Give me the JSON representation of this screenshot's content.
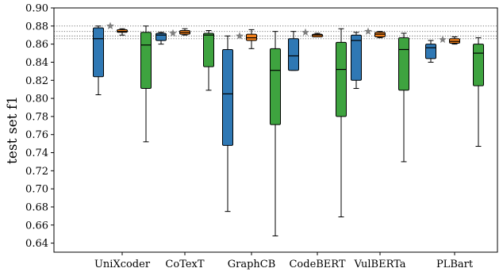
{
  "chart_data": {
    "type": "box",
    "ylabel": "test set f1",
    "ylim": [
      0.63,
      0.9
    ],
    "yticks": [
      "0.64",
      "0.66",
      "0.68",
      "0.70",
      "0.72",
      "0.74",
      "0.76",
      "0.78",
      "0.80",
      "0.82",
      "0.84",
      "0.86",
      "0.88",
      "0.90"
    ],
    "grid": false,
    "reference_lines": [
      0.88,
      0.874,
      0.869,
      0.866
    ],
    "colors": {
      "blue": "#2f78b4",
      "orange": "#f07f1a",
      "green": "#3ea33f",
      "star": "#7f7f7f",
      "refline": "#666666"
    },
    "categories": [
      "UniXcoder",
      "CoTexT",
      "GraphCB",
      "CodeBERT",
      "VulBERTa",
      "PLBart"
    ],
    "groups": [
      {
        "star": 0.88,
        "boxes": [
          {
            "color": "blue",
            "whislo": 0.804,
            "q1": 0.824,
            "med": 0.866,
            "q3": 0.878,
            "whishi": 0.88
          },
          {
            "color": "orange",
            "whislo": 0.87,
            "q1": 0.873,
            "med": 0.874,
            "q3": 0.876,
            "whishi": 0.877
          },
          {
            "color": "green",
            "whislo": 0.752,
            "q1": 0.811,
            "med": 0.859,
            "q3": 0.873,
            "whishi": 0.88
          }
        ]
      },
      {
        "star": 0.872,
        "boxes": [
          {
            "color": "blue",
            "whislo": 0.86,
            "q1": 0.864,
            "med": 0.87,
            "q3": 0.872,
            "whishi": 0.873
          },
          {
            "color": "orange",
            "whislo": 0.87,
            "q1": 0.871,
            "med": 0.873,
            "q3": 0.875,
            "whishi": 0.877
          },
          {
            "color": "green",
            "whislo": 0.809,
            "q1": 0.835,
            "med": 0.87,
            "q3": 0.872,
            "whishi": 0.875
          }
        ]
      },
      {
        "star": 0.869,
        "boxes": [
          {
            "color": "blue",
            "whislo": 0.675,
            "q1": 0.748,
            "med": 0.805,
            "q3": 0.854,
            "whishi": 0.869
          },
          {
            "color": "orange",
            "whislo": 0.855,
            "q1": 0.864,
            "med": 0.867,
            "q3": 0.871,
            "whishi": 0.876
          },
          {
            "color": "green",
            "whislo": 0.648,
            "q1": 0.771,
            "med": 0.831,
            "q3": 0.855,
            "whishi": 0.874
          }
        ]
      },
      {
        "star": 0.873,
        "boxes": [
          {
            "color": "blue",
            "whislo": 0.831,
            "q1": 0.831,
            "med": 0.847,
            "q3": 0.866,
            "whishi": 0.874
          },
          {
            "color": "orange",
            "whislo": 0.868,
            "q1": 0.868,
            "med": 0.87,
            "q3": 0.871,
            "whishi": 0.872
          },
          {
            "color": "green",
            "whislo": 0.669,
            "q1": 0.78,
            "med": 0.832,
            "q3": 0.862,
            "whishi": 0.877
          }
        ]
      },
      {
        "star": 0.874,
        "boxes": [
          {
            "color": "blue",
            "whislo": 0.811,
            "q1": 0.82,
            "med": 0.864,
            "q3": 0.87,
            "whishi": 0.873
          },
          {
            "color": "orange",
            "whislo": 0.867,
            "q1": 0.868,
            "med": 0.871,
            "q3": 0.873,
            "whishi": 0.874
          },
          {
            "color": "green",
            "whislo": 0.73,
            "q1": 0.809,
            "med": 0.854,
            "q3": 0.867,
            "whishi": 0.872
          }
        ]
      },
      {
        "star": 0.865,
        "boxes": [
          {
            "color": "blue",
            "whislo": 0.84,
            "q1": 0.844,
            "med": 0.856,
            "q3": 0.86,
            "whishi": 0.864
          },
          {
            "color": "orange",
            "whislo": 0.86,
            "q1": 0.861,
            "med": 0.863,
            "q3": 0.866,
            "whishi": 0.868
          },
          {
            "color": "green",
            "whislo": 0.747,
            "q1": 0.814,
            "med": 0.85,
            "q3": 0.86,
            "whishi": 0.867
          }
        ]
      }
    ]
  }
}
